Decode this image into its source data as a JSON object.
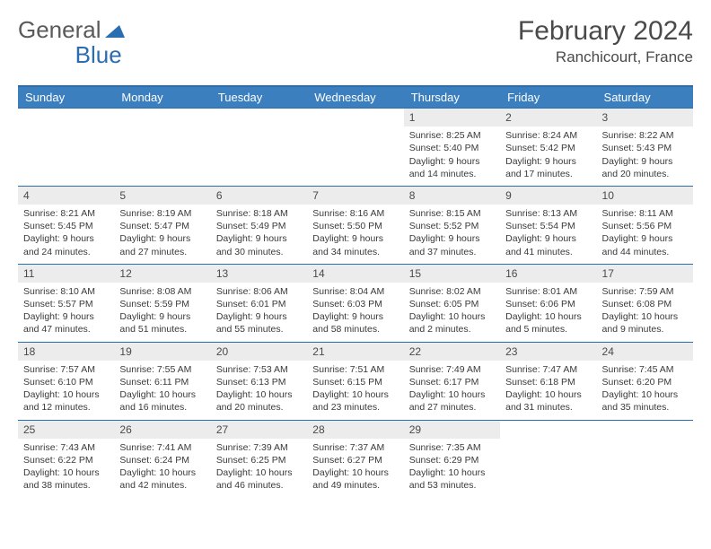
{
  "logo": {
    "part1": "General",
    "part2": "Blue"
  },
  "title": "February 2024",
  "location": "Ranchicourt, France",
  "colors": {
    "header_bg": "#3b7fbf",
    "header_border": "#2a6db0",
    "daynum_bg": "#ececec",
    "text": "#3a3a3a",
    "logo_blue": "#2a6db0"
  },
  "weekdays": [
    "Sunday",
    "Monday",
    "Tuesday",
    "Wednesday",
    "Thursday",
    "Friday",
    "Saturday"
  ],
  "weeks": [
    [
      {
        "n": "",
        "lines": []
      },
      {
        "n": "",
        "lines": []
      },
      {
        "n": "",
        "lines": []
      },
      {
        "n": "",
        "lines": []
      },
      {
        "n": "1",
        "lines": [
          "Sunrise: 8:25 AM",
          "Sunset: 5:40 PM",
          "Daylight: 9 hours and 14 minutes."
        ]
      },
      {
        "n": "2",
        "lines": [
          "Sunrise: 8:24 AM",
          "Sunset: 5:42 PM",
          "Daylight: 9 hours and 17 minutes."
        ]
      },
      {
        "n": "3",
        "lines": [
          "Sunrise: 8:22 AM",
          "Sunset: 5:43 PM",
          "Daylight: 9 hours and 20 minutes."
        ]
      }
    ],
    [
      {
        "n": "4",
        "lines": [
          "Sunrise: 8:21 AM",
          "Sunset: 5:45 PM",
          "Daylight: 9 hours and 24 minutes."
        ]
      },
      {
        "n": "5",
        "lines": [
          "Sunrise: 8:19 AM",
          "Sunset: 5:47 PM",
          "Daylight: 9 hours and 27 minutes."
        ]
      },
      {
        "n": "6",
        "lines": [
          "Sunrise: 8:18 AM",
          "Sunset: 5:49 PM",
          "Daylight: 9 hours and 30 minutes."
        ]
      },
      {
        "n": "7",
        "lines": [
          "Sunrise: 8:16 AM",
          "Sunset: 5:50 PM",
          "Daylight: 9 hours and 34 minutes."
        ]
      },
      {
        "n": "8",
        "lines": [
          "Sunrise: 8:15 AM",
          "Sunset: 5:52 PM",
          "Daylight: 9 hours and 37 minutes."
        ]
      },
      {
        "n": "9",
        "lines": [
          "Sunrise: 8:13 AM",
          "Sunset: 5:54 PM",
          "Daylight: 9 hours and 41 minutes."
        ]
      },
      {
        "n": "10",
        "lines": [
          "Sunrise: 8:11 AM",
          "Sunset: 5:56 PM",
          "Daylight: 9 hours and 44 minutes."
        ]
      }
    ],
    [
      {
        "n": "11",
        "lines": [
          "Sunrise: 8:10 AM",
          "Sunset: 5:57 PM",
          "Daylight: 9 hours and 47 minutes."
        ]
      },
      {
        "n": "12",
        "lines": [
          "Sunrise: 8:08 AM",
          "Sunset: 5:59 PM",
          "Daylight: 9 hours and 51 minutes."
        ]
      },
      {
        "n": "13",
        "lines": [
          "Sunrise: 8:06 AM",
          "Sunset: 6:01 PM",
          "Daylight: 9 hours and 55 minutes."
        ]
      },
      {
        "n": "14",
        "lines": [
          "Sunrise: 8:04 AM",
          "Sunset: 6:03 PM",
          "Daylight: 9 hours and 58 minutes."
        ]
      },
      {
        "n": "15",
        "lines": [
          "Sunrise: 8:02 AM",
          "Sunset: 6:05 PM",
          "Daylight: 10 hours and 2 minutes."
        ]
      },
      {
        "n": "16",
        "lines": [
          "Sunrise: 8:01 AM",
          "Sunset: 6:06 PM",
          "Daylight: 10 hours and 5 minutes."
        ]
      },
      {
        "n": "17",
        "lines": [
          "Sunrise: 7:59 AM",
          "Sunset: 6:08 PM",
          "Daylight: 10 hours and 9 minutes."
        ]
      }
    ],
    [
      {
        "n": "18",
        "lines": [
          "Sunrise: 7:57 AM",
          "Sunset: 6:10 PM",
          "Daylight: 10 hours and 12 minutes."
        ]
      },
      {
        "n": "19",
        "lines": [
          "Sunrise: 7:55 AM",
          "Sunset: 6:11 PM",
          "Daylight: 10 hours and 16 minutes."
        ]
      },
      {
        "n": "20",
        "lines": [
          "Sunrise: 7:53 AM",
          "Sunset: 6:13 PM",
          "Daylight: 10 hours and 20 minutes."
        ]
      },
      {
        "n": "21",
        "lines": [
          "Sunrise: 7:51 AM",
          "Sunset: 6:15 PM",
          "Daylight: 10 hours and 23 minutes."
        ]
      },
      {
        "n": "22",
        "lines": [
          "Sunrise: 7:49 AM",
          "Sunset: 6:17 PM",
          "Daylight: 10 hours and 27 minutes."
        ]
      },
      {
        "n": "23",
        "lines": [
          "Sunrise: 7:47 AM",
          "Sunset: 6:18 PM",
          "Daylight: 10 hours and 31 minutes."
        ]
      },
      {
        "n": "24",
        "lines": [
          "Sunrise: 7:45 AM",
          "Sunset: 6:20 PM",
          "Daylight: 10 hours and 35 minutes."
        ]
      }
    ],
    [
      {
        "n": "25",
        "lines": [
          "Sunrise: 7:43 AM",
          "Sunset: 6:22 PM",
          "Daylight: 10 hours and 38 minutes."
        ]
      },
      {
        "n": "26",
        "lines": [
          "Sunrise: 7:41 AM",
          "Sunset: 6:24 PM",
          "Daylight: 10 hours and 42 minutes."
        ]
      },
      {
        "n": "27",
        "lines": [
          "Sunrise: 7:39 AM",
          "Sunset: 6:25 PM",
          "Daylight: 10 hours and 46 minutes."
        ]
      },
      {
        "n": "28",
        "lines": [
          "Sunrise: 7:37 AM",
          "Sunset: 6:27 PM",
          "Daylight: 10 hours and 49 minutes."
        ]
      },
      {
        "n": "29",
        "lines": [
          "Sunrise: 7:35 AM",
          "Sunset: 6:29 PM",
          "Daylight: 10 hours and 53 minutes."
        ]
      },
      {
        "n": "",
        "lines": []
      },
      {
        "n": "",
        "lines": []
      }
    ]
  ]
}
